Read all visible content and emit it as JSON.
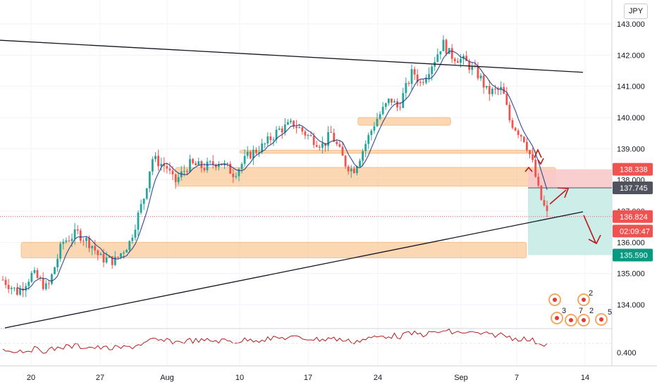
{
  "currency_label": "JPY",
  "colors": {
    "up": "#26a69a",
    "down": "#ef5350",
    "zone": "#f9c99a",
    "target_box": "#c8ebe6",
    "arrow": "#b71c1c",
    "rsi": "#b71c1c",
    "ma": "#1e3a8a"
  },
  "chart_data": {
    "type": "candlestick",
    "y_axis": {
      "range": [
        133.4,
        143.3
      ],
      "ticks": [
        "143.000",
        "142.000",
        "141.000",
        "140.000",
        "139.000",
        "138.000",
        "137.000",
        "136.000",
        "135.000",
        "134.000"
      ]
    },
    "x_axis": {
      "ticks": [
        "20",
        "27",
        "Aug",
        "10",
        "17",
        "24",
        "Sep",
        "7",
        "14"
      ]
    },
    "price_labels": [
      {
        "value": "138.338",
        "price": 138.338,
        "color": "#ef5350"
      },
      {
        "value": "137.745",
        "price": 137.745,
        "color": "#50535e"
      },
      {
        "value": "136.824",
        "price": 136.824,
        "color": "#ef5350"
      },
      {
        "value": "02:09:47",
        "price": 136.36,
        "color": "#ef5350"
      },
      {
        "value": "135.590",
        "price": 135.59,
        "color": "#089981"
      }
    ],
    "zones": [
      {
        "price_from": 135.5,
        "price_to": 136.0,
        "start": "Jul 19",
        "end": "Sep 8"
      },
      {
        "price_from": 137.8,
        "price_to": 138.4,
        "start": "Aug 2",
        "end": "Sep 11"
      },
      {
        "price_from": 138.85,
        "price_to": 138.95,
        "start": "Aug 10",
        "end": "Sep 9"
      },
      {
        "price_from": 139.75,
        "price_to": 140.0,
        "start": "Aug 22",
        "end": "Aug 31"
      }
    ],
    "target_box": {
      "price_from": 135.59,
      "price_to": 137.745
    },
    "resistance_line": [
      {
        "date": "Jul 14",
        "price": 142.5
      },
      {
        "date": "Sep 13",
        "price": 141.45
      }
    ],
    "support_line": [
      {
        "date": "Jul 14",
        "price": 133.3
      },
      {
        "date": "Sep 13",
        "price": 136.8
      }
    ],
    "rsi": {
      "tick": "0.400"
    },
    "event_markers": [
      "2",
      "3",
      "7",
      "2",
      "5"
    ]
  }
}
